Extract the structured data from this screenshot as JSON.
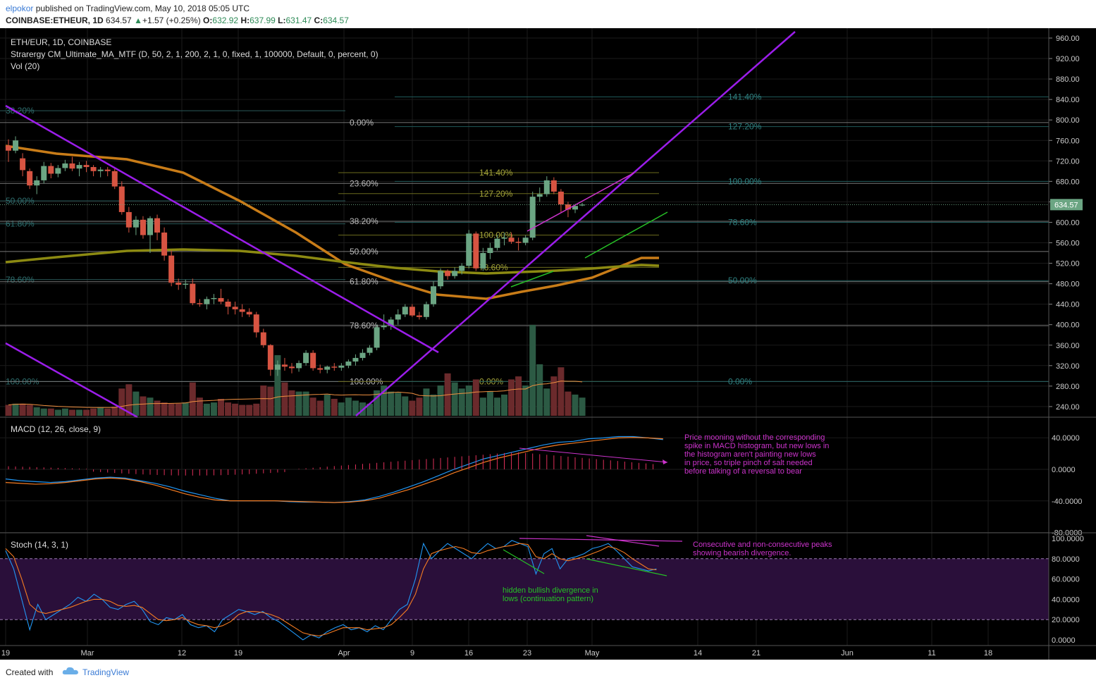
{
  "header": {
    "author": "elpokor",
    "published_text": "published on TradingView.com, May 10, 2018 05:05 UTC",
    "symbol_full": "COINBASE:ETHEUR, 1D",
    "last": "634.57",
    "change": "+1.57 (+0.25%)",
    "o_label": "O:",
    "o": "632.92",
    "h_label": "H:",
    "h": "637.99",
    "l_label": "L:",
    "l": "631.47",
    "c_label": "C:",
    "c": "634.57"
  },
  "legend": {
    "symbol": "ETH/EUR, 1D, COINBASE",
    "strategy": "Strarergy CM_Ultimate_MA_MTF (D, 50, 2, 1, 200, 2, 1, 0, fixed, 1, 100000, Default, 0, percent, 0)",
    "volume": "Vol (20)",
    "macd": "MACD (12, 26, close, 9)",
    "stoch": "Stoch (14, 3, 1)"
  },
  "footer": {
    "created_with": "Created with",
    "brand": "TradingView"
  },
  "colors": {
    "background": "#000000",
    "up": "#6ba583",
    "down": "#d75442",
    "trendline": "#9b1dea",
    "ma50": "#c87c18",
    "ma200": "#8c8a12",
    "macd": "#2196f3",
    "signal": "#f57c22",
    "hist": "#e0305a",
    "annotation_magenta": "#cc33cc",
    "annotation_green": "#26c026"
  },
  "chart_data": {
    "type": "candlestick",
    "price_axis": {
      "ylim": [
        220,
        970
      ],
      "ticks": [
        "960.00",
        "920.00",
        "880.00",
        "840.00",
        "800.00",
        "760.00",
        "720.00",
        "680.00",
        "640.00",
        "600.00",
        "560.00",
        "520.00",
        "480.00",
        "440.00",
        "400.00",
        "360.00",
        "320.00",
        "280.00",
        "240.00"
      ],
      "last_price_label": "634.57"
    },
    "x_axis": {
      "ticks": [
        "19",
        "Mar",
        "12",
        "19",
        "Apr",
        "9",
        "16",
        "23",
        "May",
        "14",
        "21",
        "Jun",
        "11",
        "18"
      ]
    },
    "candles": [
      [
        750,
        762,
        718,
        740
      ],
      [
        740,
        768,
        735,
        760
      ],
      [
        725,
        735,
        690,
        702
      ],
      [
        700,
        705,
        665,
        672
      ],
      [
        672,
        690,
        655,
        682
      ],
      [
        682,
        718,
        676,
        710
      ],
      [
        710,
        716,
        686,
        695
      ],
      [
        695,
        712,
        688,
        706
      ],
      [
        706,
        722,
        700,
        715
      ],
      [
        715,
        728,
        700,
        705
      ],
      [
        705,
        718,
        690,
        712
      ],
      [
        712,
        720,
        698,
        708
      ],
      [
        708,
        712,
        690,
        700
      ],
      [
        700,
        708,
        688,
        703
      ],
      [
        703,
        708,
        690,
        700
      ],
      [
        700,
        705,
        665,
        670
      ],
      [
        670,
        680,
        615,
        620
      ],
      [
        620,
        630,
        580,
        590
      ],
      [
        590,
        612,
        575,
        605
      ],
      [
        605,
        612,
        568,
        575
      ],
      [
        575,
        612,
        540,
        608
      ],
      [
        608,
        615,
        565,
        580
      ],
      [
        580,
        590,
        525,
        535
      ],
      [
        535,
        545,
        475,
        482
      ],
      [
        482,
        490,
        468,
        478
      ],
      [
        478,
        488,
        470,
        480
      ],
      [
        480,
        490,
        438,
        442
      ],
      [
        442,
        450,
        435,
        440
      ],
      [
        440,
        455,
        430,
        450
      ],
      [
        450,
        460,
        440,
        452
      ],
      [
        452,
        470,
        440,
        445
      ],
      [
        445,
        450,
        420,
        435
      ],
      [
        435,
        445,
        420,
        430
      ],
      [
        430,
        440,
        415,
        425
      ],
      [
        425,
        432,
        415,
        420
      ],
      [
        420,
        425,
        375,
        385
      ],
      [
        385,
        392,
        355,
        360
      ],
      [
        360,
        362,
        300,
        312
      ],
      [
        312,
        330,
        300,
        322
      ],
      [
        322,
        335,
        310,
        318
      ],
      [
        318,
        325,
        305,
        315
      ],
      [
        315,
        330,
        308,
        325
      ],
      [
        325,
        350,
        320,
        345
      ],
      [
        345,
        350,
        310,
        315
      ],
      [
        315,
        322,
        305,
        312
      ],
      [
        312,
        320,
        305,
        318
      ],
      [
        318,
        325,
        310,
        316
      ],
      [
        316,
        325,
        310,
        320
      ],
      [
        320,
        332,
        315,
        328
      ],
      [
        328,
        342,
        320,
        335
      ],
      [
        335,
        352,
        330,
        345
      ],
      [
        345,
        360,
        340,
        355
      ],
      [
        355,
        400,
        350,
        395
      ],
      [
        395,
        420,
        390,
        398
      ],
      [
        398,
        415,
        390,
        410
      ],
      [
        410,
        430,
        400,
        420
      ],
      [
        420,
        440,
        415,
        435
      ],
      [
        435,
        440,
        415,
        418
      ],
      [
        418,
        425,
        410,
        415
      ],
      [
        415,
        445,
        410,
        440
      ],
      [
        440,
        485,
        435,
        475
      ],
      [
        475,
        510,
        470,
        505
      ],
      [
        505,
        508,
        488,
        495
      ],
      [
        495,
        512,
        490,
        505
      ],
      [
        505,
        520,
        498,
        515
      ],
      [
        515,
        585,
        510,
        578
      ],
      [
        578,
        582,
        505,
        510
      ],
      [
        510,
        550,
        505,
        540
      ],
      [
        540,
        560,
        528,
        550
      ],
      [
        550,
        575,
        545,
        568
      ],
      [
        568,
        580,
        555,
        570
      ],
      [
        570,
        580,
        558,
        562
      ],
      [
        562,
        570,
        545,
        560
      ],
      [
        560,
        575,
        555,
        570
      ],
      [
        570,
        660,
        565,
        650
      ],
      [
        650,
        668,
        640,
        655
      ],
      [
        655,
        690,
        650,
        682
      ],
      [
        682,
        688,
        655,
        660
      ],
      [
        660,
        665,
        620,
        635
      ],
      [
        635,
        640,
        610,
        625
      ],
      [
        625,
        636,
        618,
        632
      ],
      [
        632.92,
        637.99,
        631.47,
        634.57
      ]
    ],
    "moving_averages": [
      {
        "type": "MA50"
      },
      {
        "type": "MA200"
      }
    ],
    "fibonacci_levels": {
      "left": [
        "38.20%",
        "50.00%",
        "61.80%",
        "78.60%",
        "100.00%"
      ],
      "mid": [
        "0.00%",
        "23.60%",
        "38.20%",
        "50.00%",
        "61.80%",
        "78.60%",
        "100.00%"
      ],
      "inner": [
        "141.40%",
        "127.20%",
        "100.00%",
        "78.60%",
        "0.00%"
      ],
      "right": [
        "141.40%",
        "127.20%",
        "100.00%",
        "78.60%",
        "50.00%",
        "0.00%"
      ]
    },
    "volume": [
      0.18,
      0.2,
      0.2,
      0.18,
      0.14,
      0.12,
      0.12,
      0.1,
      0.12,
      0.1,
      0.1,
      0.1,
      0.12,
      0.14,
      0.12,
      0.15,
      0.45,
      0.52,
      0.4,
      0.32,
      0.3,
      0.25,
      0.22,
      0.2,
      0.2,
      0.22,
      0.55,
      0.3,
      0.2,
      0.22,
      0.28,
      0.22,
      0.2,
      0.18,
      0.18,
      0.2,
      0.5,
      0.48,
      1.0,
      0.55,
      0.42,
      0.4,
      0.4,
      0.3,
      0.25,
      0.35,
      0.28,
      0.22,
      0.3,
      0.25,
      0.22,
      0.2,
      0.42,
      0.5,
      0.4,
      0.38,
      0.32,
      0.25,
      0.3,
      0.45,
      0.35,
      0.5,
      0.7,
      0.55,
      0.45,
      0.5,
      0.6,
      0.3,
      0.4,
      0.3,
      0.35,
      0.6,
      0.65,
      0.5,
      1.5,
      0.85,
      0.45,
      0.65,
      0.8,
      0.4,
      0.35,
      0.3
    ],
    "macd": {
      "axis": [
        "40.0000",
        "0.0000",
        "-40.0000",
        "-80.0000"
      ],
      "ylim": [
        -85,
        60
      ]
    },
    "stoch": {
      "axis": [
        "100.0000",
        "80.0000",
        "60.0000",
        "40.0000",
        "20.0000",
        "0.0000"
      ],
      "ylim": [
        -5,
        105
      ],
      "k": [
        88,
        70,
        40,
        10,
        35,
        20,
        25,
        30,
        35,
        42,
        38,
        45,
        40,
        32,
        30,
        35,
        38,
        30,
        18,
        15,
        22,
        20,
        25,
        15,
        12,
        14,
        8,
        20,
        25,
        30,
        28,
        25,
        28,
        22,
        18,
        12,
        6,
        0,
        5,
        2,
        8,
        12,
        15,
        10,
        12,
        8,
        14,
        10,
        20,
        30,
        35,
        60,
        95,
        80,
        88,
        95,
        90,
        85,
        80,
        88,
        95,
        90,
        92,
        98,
        95,
        92,
        65,
        85,
        90,
        70,
        80,
        82,
        85,
        90,
        92,
        95,
        88,
        80,
        72,
        70,
        68,
        70
      ],
      "d": [
        90,
        82,
        60,
        35,
        28,
        26,
        28,
        30,
        32,
        35,
        38,
        40,
        40,
        38,
        34,
        33,
        34,
        32,
        26,
        20,
        19,
        20,
        22,
        18,
        15,
        14,
        12,
        14,
        18,
        25,
        28,
        28,
        27,
        25,
        22,
        17,
        12,
        7,
        5,
        4,
        6,
        9,
        12,
        12,
        12,
        10,
        11,
        12,
        15,
        22,
        30,
        45,
        70,
        85,
        88,
        90,
        92,
        90,
        86,
        85,
        88,
        90,
        92,
        93,
        95,
        94,
        82,
        80,
        85,
        80,
        78,
        80,
        82,
        85,
        88,
        92,
        90,
        86,
        80,
        75,
        70,
        69
      ]
    },
    "annotations": [
      "Price mooning without the corresponding spike in MACD histogram, but new lows in the histogram aren't painting new lows in price, so triple pinch of salt needed before talking of a reversal to bear market",
      "Consecutive and non-consecutive peaks showing bearish divergence.",
      "hidden bullish divergence in lows (continuation pattern)"
    ]
  }
}
